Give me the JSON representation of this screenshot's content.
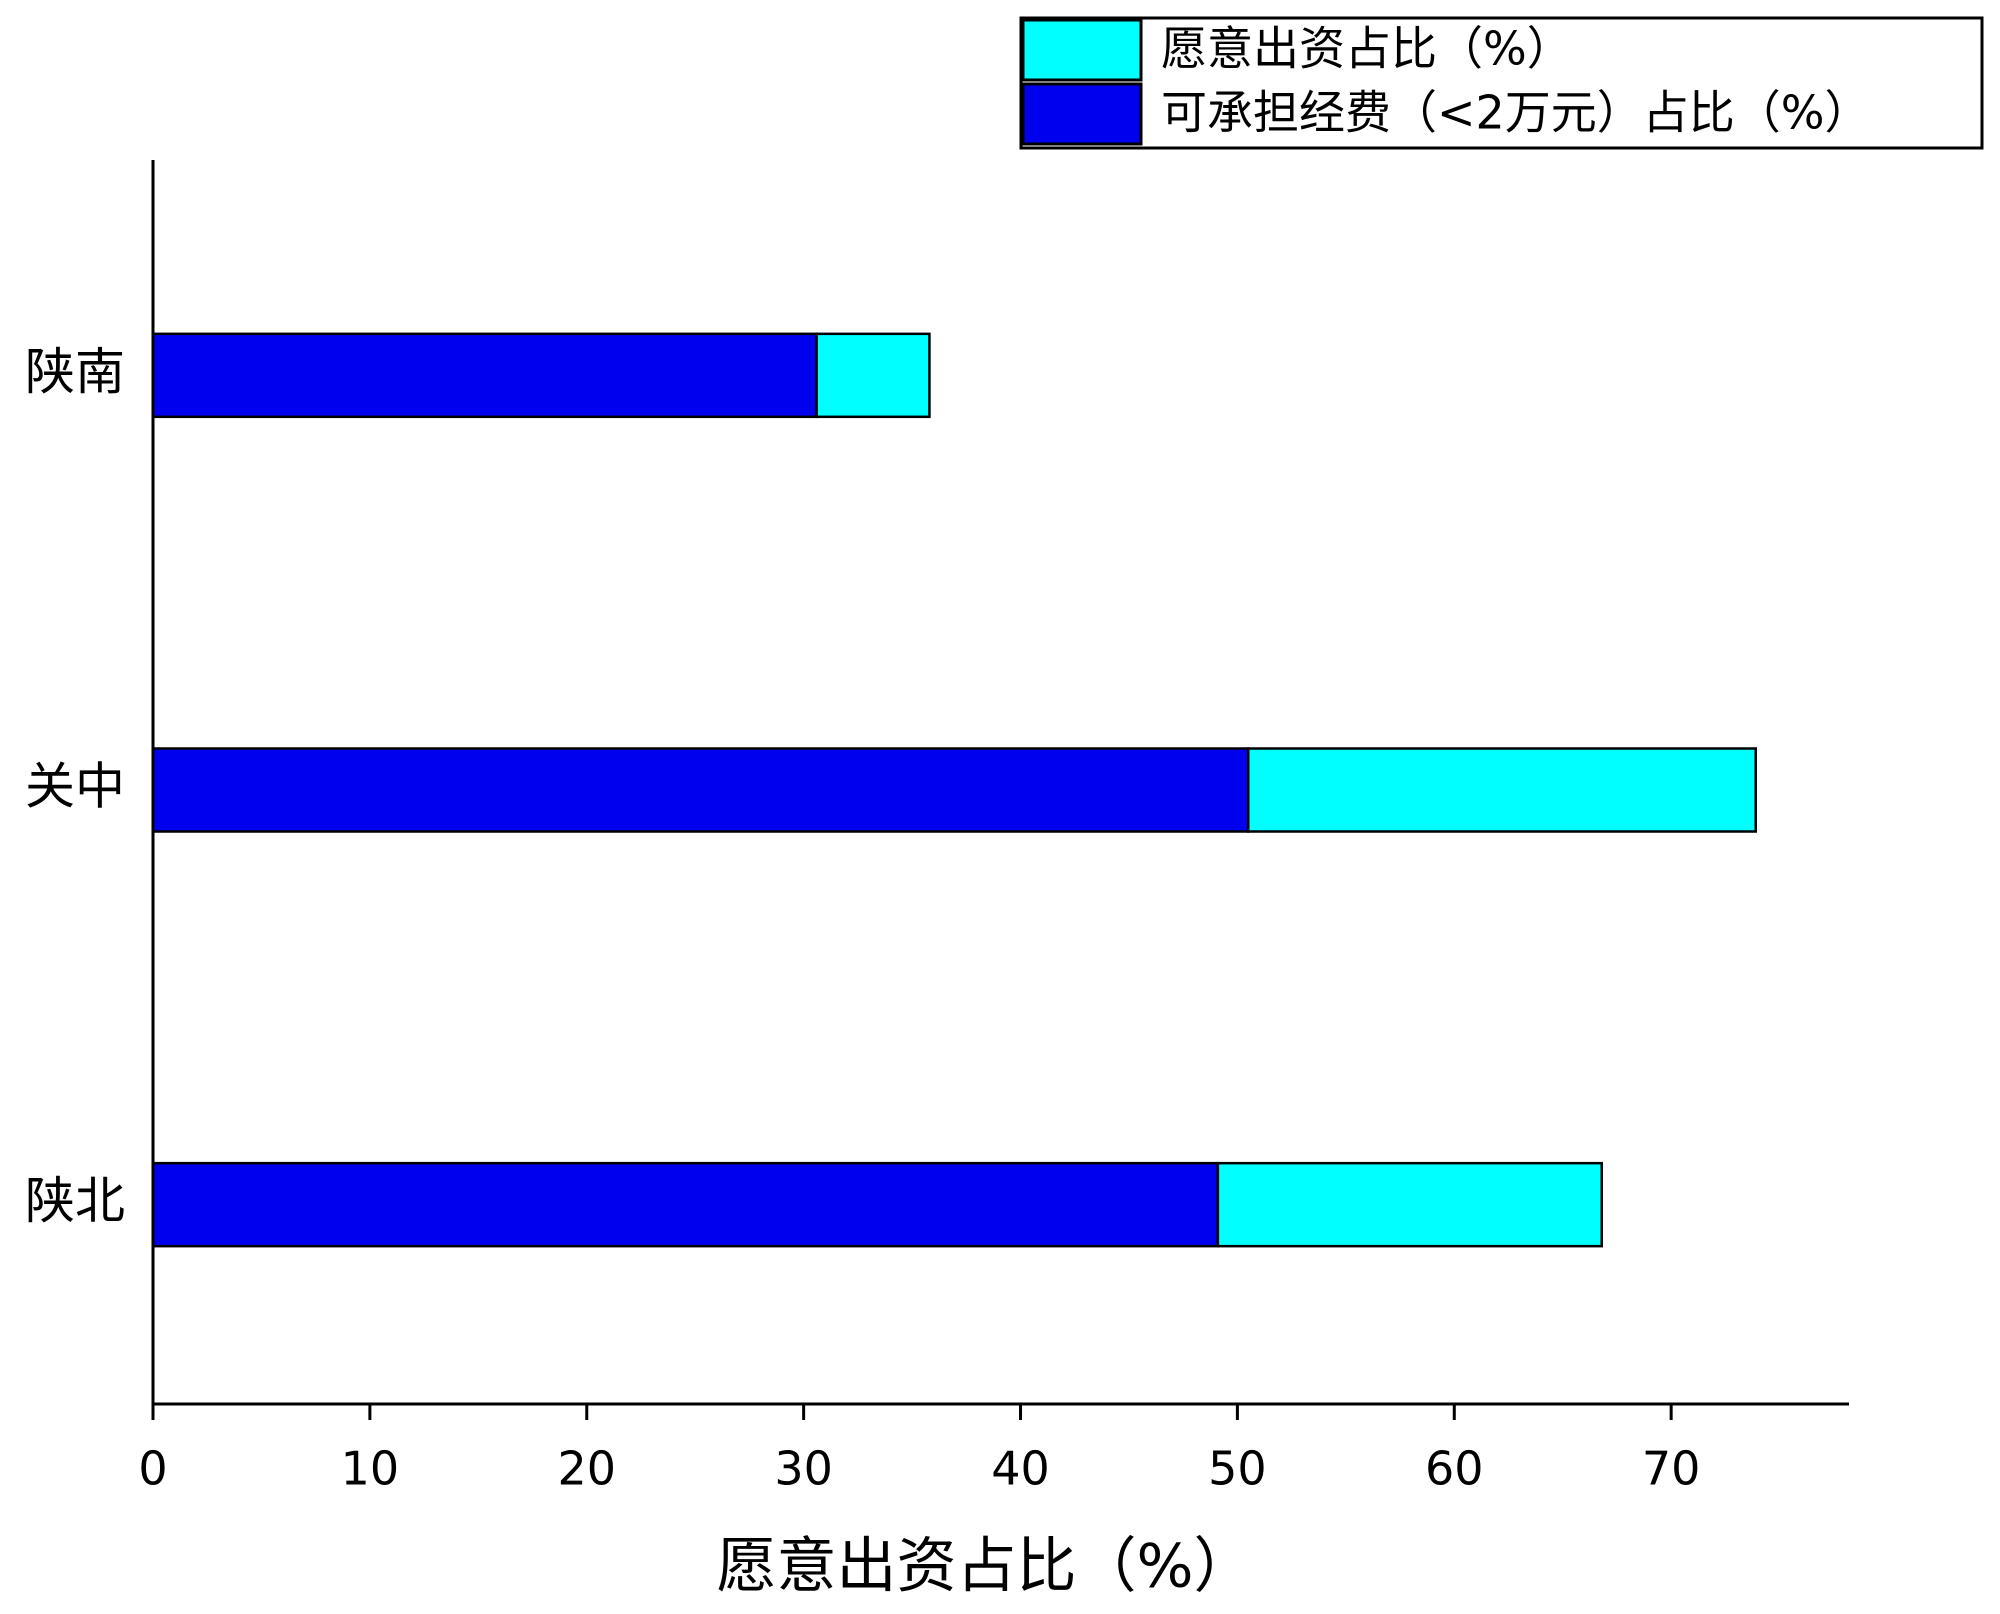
{
  "chart_data": {
    "type": "stacked-barh",
    "xlabel": "愿意出资占比（%）",
    "categories": [
      "陕南",
      "关中",
      "陕北"
    ],
    "series": [
      {
        "name": "可承担经费（<2万元）占比（%）",
        "color": "#0000ee",
        "values": [
          30.6,
          50.5,
          49.1
        ]
      },
      {
        "name": "愿意出资占比（%）",
        "color": "#00ffff",
        "values": [
          5.2,
          23.4,
          17.7
        ]
      }
    ],
    "xlim": [
      0,
      78.2
    ],
    "xticks": [
      0,
      10,
      20,
      30,
      40,
      50,
      60,
      70
    ],
    "legend": "top-right"
  }
}
